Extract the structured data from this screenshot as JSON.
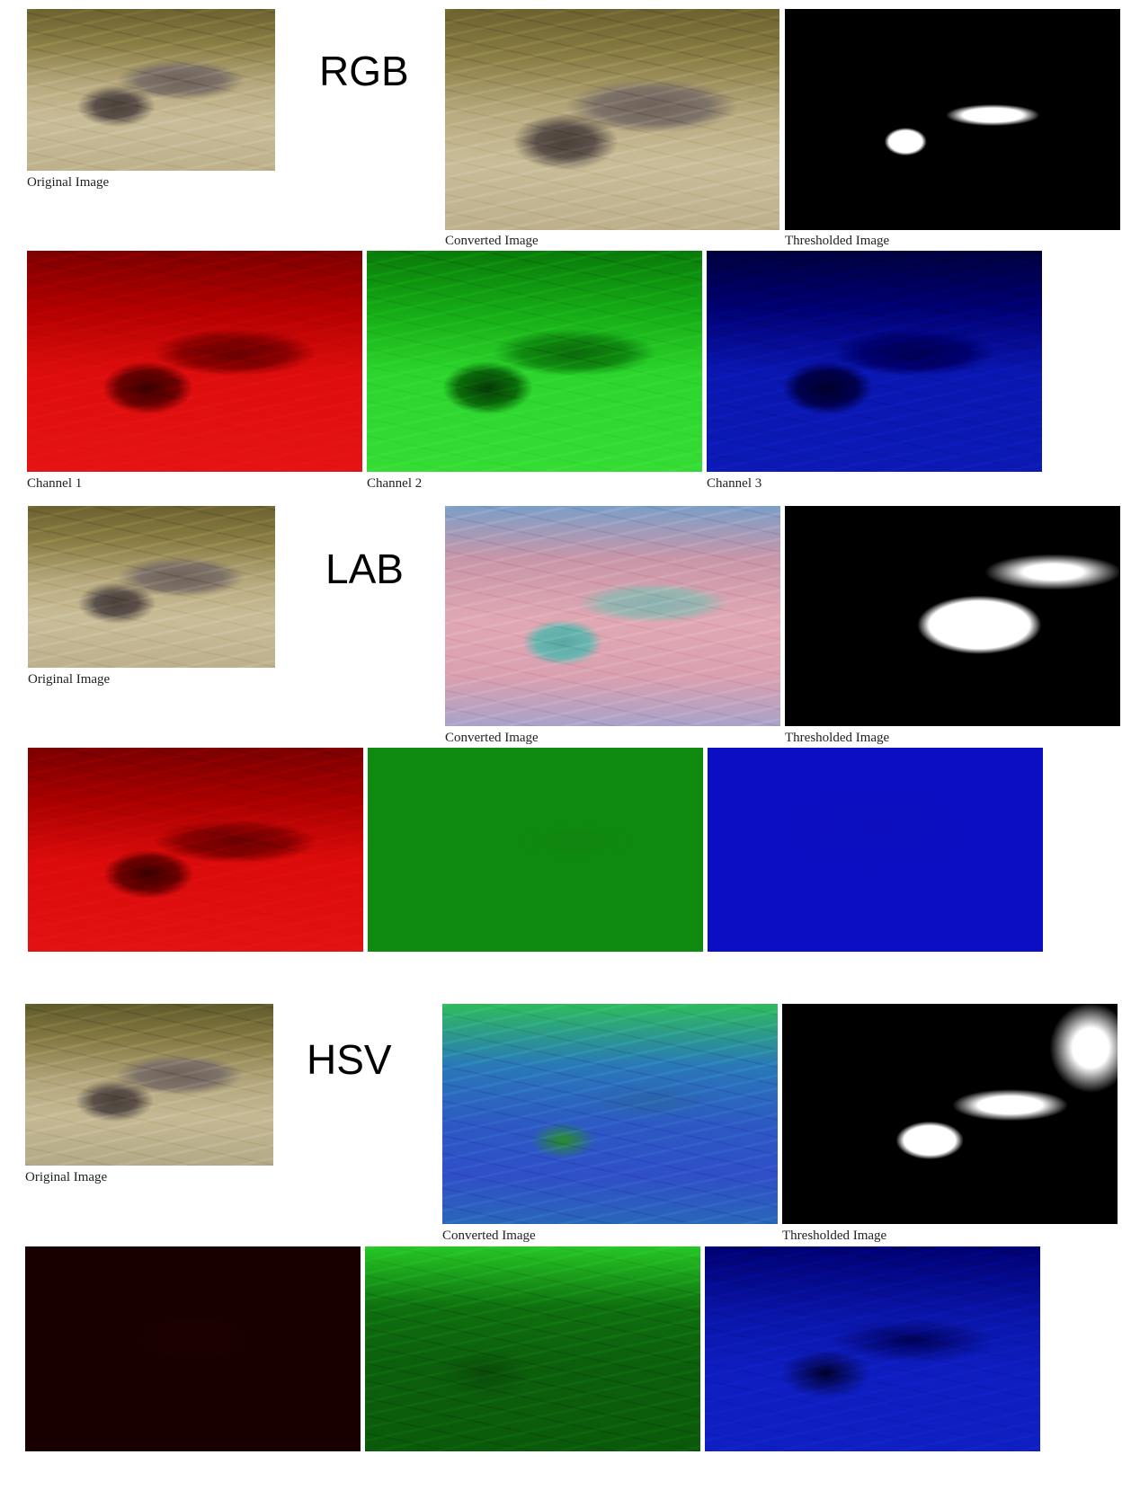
{
  "sections": {
    "rgb": {
      "title": "RGB",
      "original_caption": "Original Image",
      "converted_caption": "Converted Image",
      "thresholded_caption": "Thresholded Image",
      "channel_1_caption": "Channel 1",
      "channel_2_caption": "Channel 2",
      "channel_3_caption": "Channel 3"
    },
    "lab": {
      "title": "LAB",
      "original_caption": "Original Image",
      "converted_caption": "Converted Image",
      "thresholded_caption": "Thresholded Image"
    },
    "hsv": {
      "title": "HSV",
      "original_caption": "Original Image",
      "converted_caption": "Converted Image",
      "thresholded_caption": "Thresholded Image"
    }
  }
}
